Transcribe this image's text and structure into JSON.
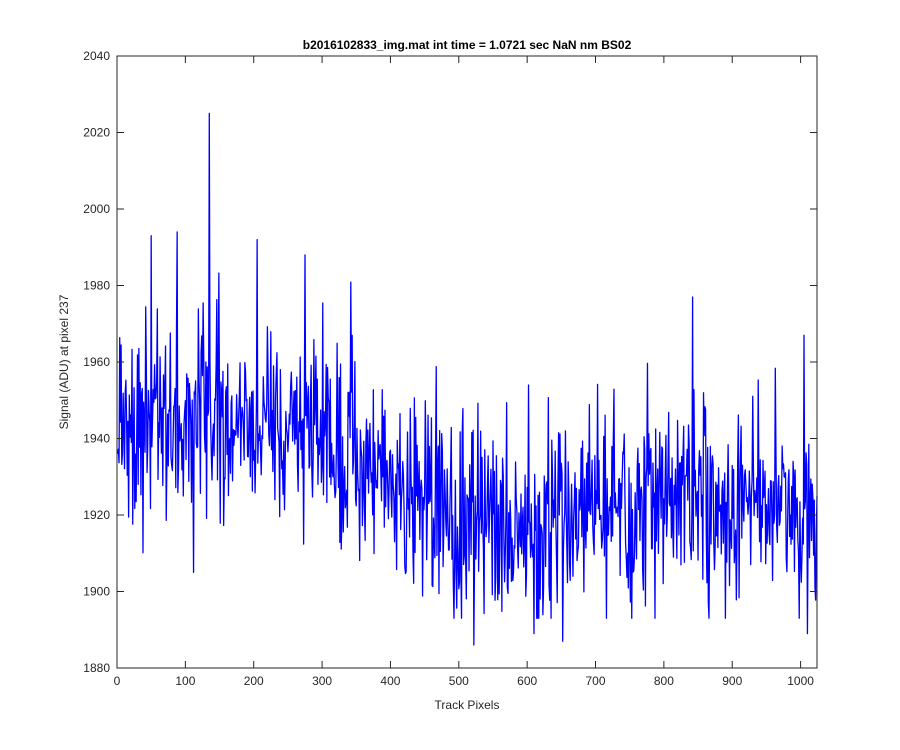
{
  "chart_data": {
    "type": "line",
    "title": "b2016102833_img.mat int time = 1.0721 sec  NaN nm BS02",
    "xlabel": "Track Pixels",
    "ylabel": "Signal (ADU) at pixel 237",
    "xlim": [
      0,
      1024
    ],
    "ylim": [
      1880,
      2040
    ],
    "xticks": [
      0,
      100,
      200,
      300,
      400,
      500,
      600,
      700,
      800,
      900,
      1000
    ],
    "yticks": [
      1880,
      1900,
      1920,
      1940,
      1960,
      1980,
      2000,
      2020,
      2040
    ],
    "grid": false,
    "legend": "none",
    "series": [
      {
        "color": "#0000ff",
        "x_start": 1,
        "x_step": 1,
        "points": 1024,
        "trend_keypoints": {
          "x": [
            0,
            100,
            200,
            300,
            400,
            450,
            500,
            600,
            700,
            800,
            900,
            1000,
            1024
          ],
          "y": [
            1946,
            1945,
            1942,
            1938,
            1930,
            1920,
            1918,
            1918,
            1922,
            1926,
            1925,
            1920,
            1918
          ]
        },
        "noise_sd": 13,
        "annotated_extremes": [
          {
            "x": 135,
            "y": 2025
          },
          {
            "x": 88,
            "y": 1994
          },
          {
            "x": 50,
            "y": 1993
          },
          {
            "x": 205,
            "y": 1992
          },
          {
            "x": 275,
            "y": 1988
          },
          {
            "x": 842,
            "y": 1977
          },
          {
            "x": 1005,
            "y": 1967
          },
          {
            "x": 112,
            "y": 1905
          },
          {
            "x": 522,
            "y": 1886
          },
          {
            "x": 610,
            "y": 1889
          },
          {
            "x": 652,
            "y": 1887
          },
          {
            "x": 1010,
            "y": 1889
          }
        ]
      }
    ]
  }
}
